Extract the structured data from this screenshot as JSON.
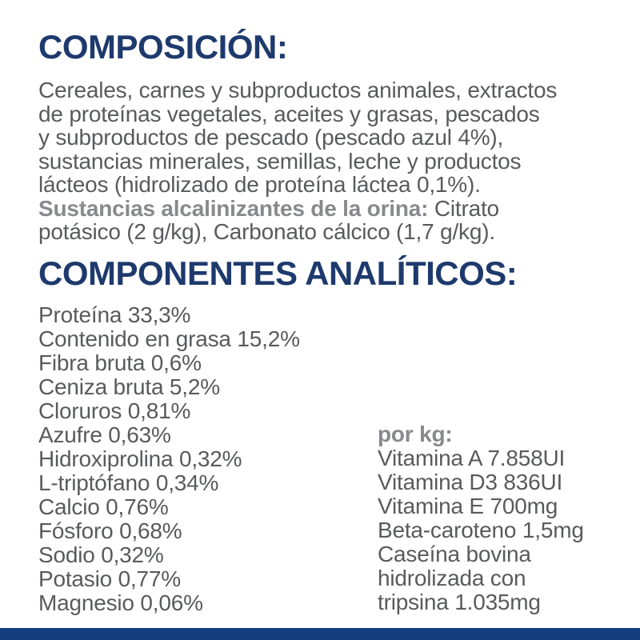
{
  "colors": {
    "heading_navy": "#1e3a6d",
    "body_gray": "#595a5c",
    "bold_gray": "#88898c",
    "bottom_bar_navy": "#123e80"
  },
  "composition": {
    "heading": "COMPOSICIÓN:",
    "text_part1": "Cereales, carnes y subproductos animales, extractos\nde proteínas vegetales, aceites y grasas, pescados\ny subproductos de pescado (pescado azul 4%),\nsustancias minerales, semillas, leche y productos\nlácteos (hidrolizado de proteína láctea 0,1%).\n",
    "bold_label": "Sustancias alcalinizantes de la orina:",
    "text_part2": " Citrato\npotásico (2 g/kg), Carbonato cálcico (1,7 g/kg)."
  },
  "analytics": {
    "heading": "COMPONENTES ANALÍTICOS:",
    "left_items": [
      "Proteína 33,3%",
      "Contenido en grasa 15,2%",
      "Fibra bruta 0,6%",
      "Ceniza bruta 5,2%",
      "Cloruros 0,81%",
      "Azufre 0,63%",
      "Hidroxiprolina 0,32%",
      "L-triptófano 0,34%",
      "Calcio 0,76%",
      "Fósforo 0,68%",
      "Sodio 0,32%",
      "Potasio 0,77%",
      "Magnesio 0,06%"
    ],
    "per_kg": {
      "heading": "por kg:",
      "items": [
        "Vitamina A 7.858UI",
        "Vitamina D3 836UI",
        "Vitamina E 700mg",
        "Beta-caroteno 1,5mg",
        "Caseína bovina\nhidrolizada con\ntripsina 1.035mg"
      ]
    }
  }
}
